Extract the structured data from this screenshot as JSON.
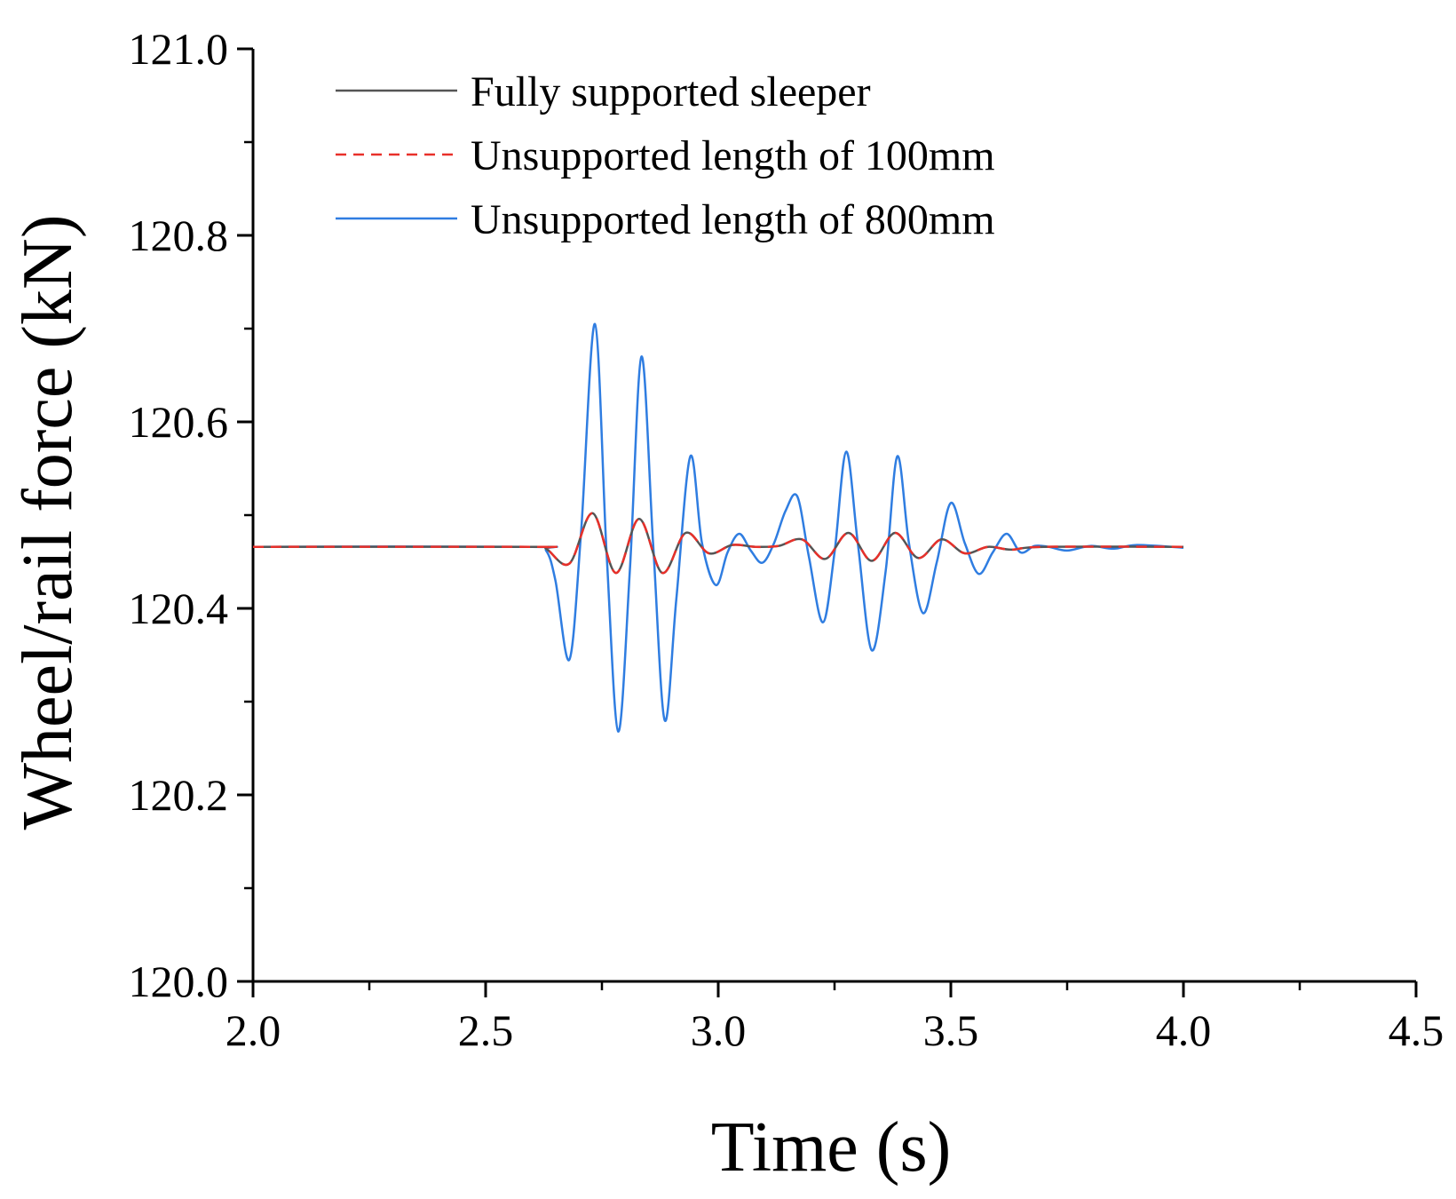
{
  "chart_data": {
    "type": "line",
    "title": "",
    "xlabel": "Time (s)",
    "ylabel": "Wheel/rail force (kN)",
    "xlim": [
      2.0,
      4.5
    ],
    "ylim": [
      120.0,
      121.0
    ],
    "x_ticks": [
      2.0,
      2.5,
      3.0,
      3.5,
      4.0,
      4.5
    ],
    "x_tick_labels": [
      "2.0",
      "2.5",
      "3.0",
      "3.5",
      "4.0",
      "4.5"
    ],
    "y_ticks": [
      120.0,
      120.2,
      120.4,
      120.6,
      120.8,
      121.0
    ],
    "y_tick_labels": [
      "120.0",
      "120.2",
      "120.4",
      "120.6",
      "120.8",
      "121.0"
    ],
    "grid": false,
    "legend_position": "top-left",
    "series": [
      {
        "name": "Fully supported sleeper",
        "color": "#555555",
        "style": "solid",
        "x": [
          2.0,
          2.6,
          2.63,
          2.68,
          2.73,
          2.78,
          2.83,
          2.88,
          2.93,
          2.98,
          3.03,
          3.08,
          3.13,
          3.18,
          3.23,
          3.28,
          3.33,
          3.38,
          3.43,
          3.48,
          3.53,
          3.58,
          3.63,
          3.7,
          4.0
        ],
        "y": [
          120.466,
          120.466,
          120.464,
          120.448,
          120.502,
          120.438,
          120.496,
          120.438,
          120.481,
          120.459,
          120.468,
          120.466,
          120.467,
          120.474,
          120.453,
          120.481,
          120.451,
          120.481,
          120.454,
          120.474,
          120.459,
          120.466,
          120.463,
          120.466,
          120.466
        ]
      },
      {
        "name": "Unsupported length of 100mm",
        "color": "#e8302a",
        "style": "dashed",
        "x": [
          2.0,
          2.6,
          2.63,
          2.68,
          2.73,
          2.78,
          2.83,
          2.88,
          2.93,
          2.98,
          3.03,
          3.08,
          3.13,
          3.18,
          3.23,
          3.28,
          3.33,
          3.38,
          3.43,
          3.48,
          3.53,
          3.58,
          3.63,
          3.7,
          4.0
        ],
        "y": [
          120.466,
          120.466,
          120.464,
          120.448,
          120.502,
          120.438,
          120.496,
          120.438,
          120.481,
          120.459,
          120.468,
          120.466,
          120.467,
          120.474,
          120.453,
          120.481,
          120.451,
          120.481,
          120.454,
          120.474,
          120.459,
          120.466,
          120.463,
          120.466,
          120.466
        ]
      },
      {
        "name": "Unsupported length of 800mm",
        "color": "#2f7de1",
        "style": "solid",
        "x": [
          2.0,
          2.6,
          2.63,
          2.65,
          2.68,
          2.705,
          2.735,
          2.76,
          2.785,
          2.81,
          2.835,
          2.86,
          2.885,
          2.91,
          2.94,
          2.965,
          2.995,
          3.02,
          3.045,
          3.07,
          3.095,
          3.12,
          3.145,
          3.17,
          3.195,
          3.225,
          3.25,
          3.275,
          3.3,
          3.33,
          3.36,
          3.385,
          3.41,
          3.44,
          3.47,
          3.5,
          3.53,
          3.56,
          3.59,
          3.62,
          3.65,
          3.68,
          3.71,
          3.75,
          3.8,
          3.85,
          3.9,
          4.0
        ],
        "y": [
          120.466,
          120.466,
          120.462,
          120.43,
          120.345,
          120.48,
          120.705,
          120.46,
          120.268,
          120.44,
          120.67,
          120.47,
          120.28,
          120.41,
          120.563,
          120.47,
          120.425,
          120.46,
          120.48,
          120.462,
          120.449,
          120.47,
          120.505,
          120.52,
          120.455,
          120.385,
          120.46,
          120.568,
          120.47,
          120.355,
          120.44,
          120.563,
          120.47,
          120.395,
          120.45,
          120.513,
          120.47,
          120.437,
          120.46,
          120.48,
          120.46,
          120.467,
          120.466,
          120.462,
          120.467,
          120.464,
          120.468,
          120.465
        ]
      }
    ]
  }
}
